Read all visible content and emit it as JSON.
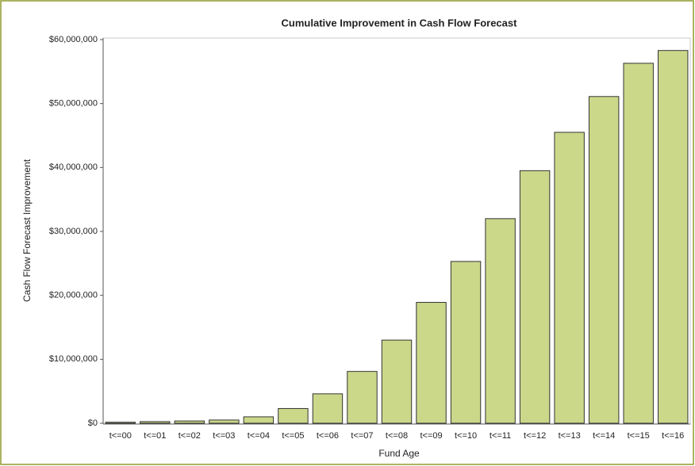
{
  "chart_data": {
    "type": "bar",
    "title": "Cumulative Improvement in Cash Flow Forecast",
    "x_label": "Fund Age",
    "y_label": "Cash Flow Forecast Improvement",
    "categories": [
      "t<=00",
      "t<=01",
      "t<=02",
      "t<=03",
      "t<=04",
      "t<=05",
      "t<=06",
      "t<=07",
      "t<=08",
      "t<=09",
      "t<=10",
      "t<=11",
      "t<=12",
      "t<=13",
      "t<=14",
      "t<=15",
      "t<=16"
    ],
    "values": [
      150000,
      250000,
      350000,
      500000,
      1000000,
      2300000,
      4600000,
      8100000,
      13000000,
      18900000,
      25300000,
      32000000,
      39500000,
      45500000,
      51100000,
      56300000,
      58300000
    ],
    "color": "#cbd88a",
    "ylim": [
      0,
      60000000
    ],
    "yticks": [
      {
        "value": 0,
        "label": "$0"
      },
      {
        "value": 10000000,
        "label": "$10,000,000"
      },
      {
        "value": 20000000,
        "label": "$20,000,000"
      },
      {
        "value": 30000000,
        "label": "$30,000,000"
      },
      {
        "value": 40000000,
        "label": "$40,000,000"
      },
      {
        "value": 50000000,
        "label": "$50,000,000"
      },
      {
        "value": 60000000,
        "label": "$60,000,000"
      }
    ],
    "grid": false
  }
}
